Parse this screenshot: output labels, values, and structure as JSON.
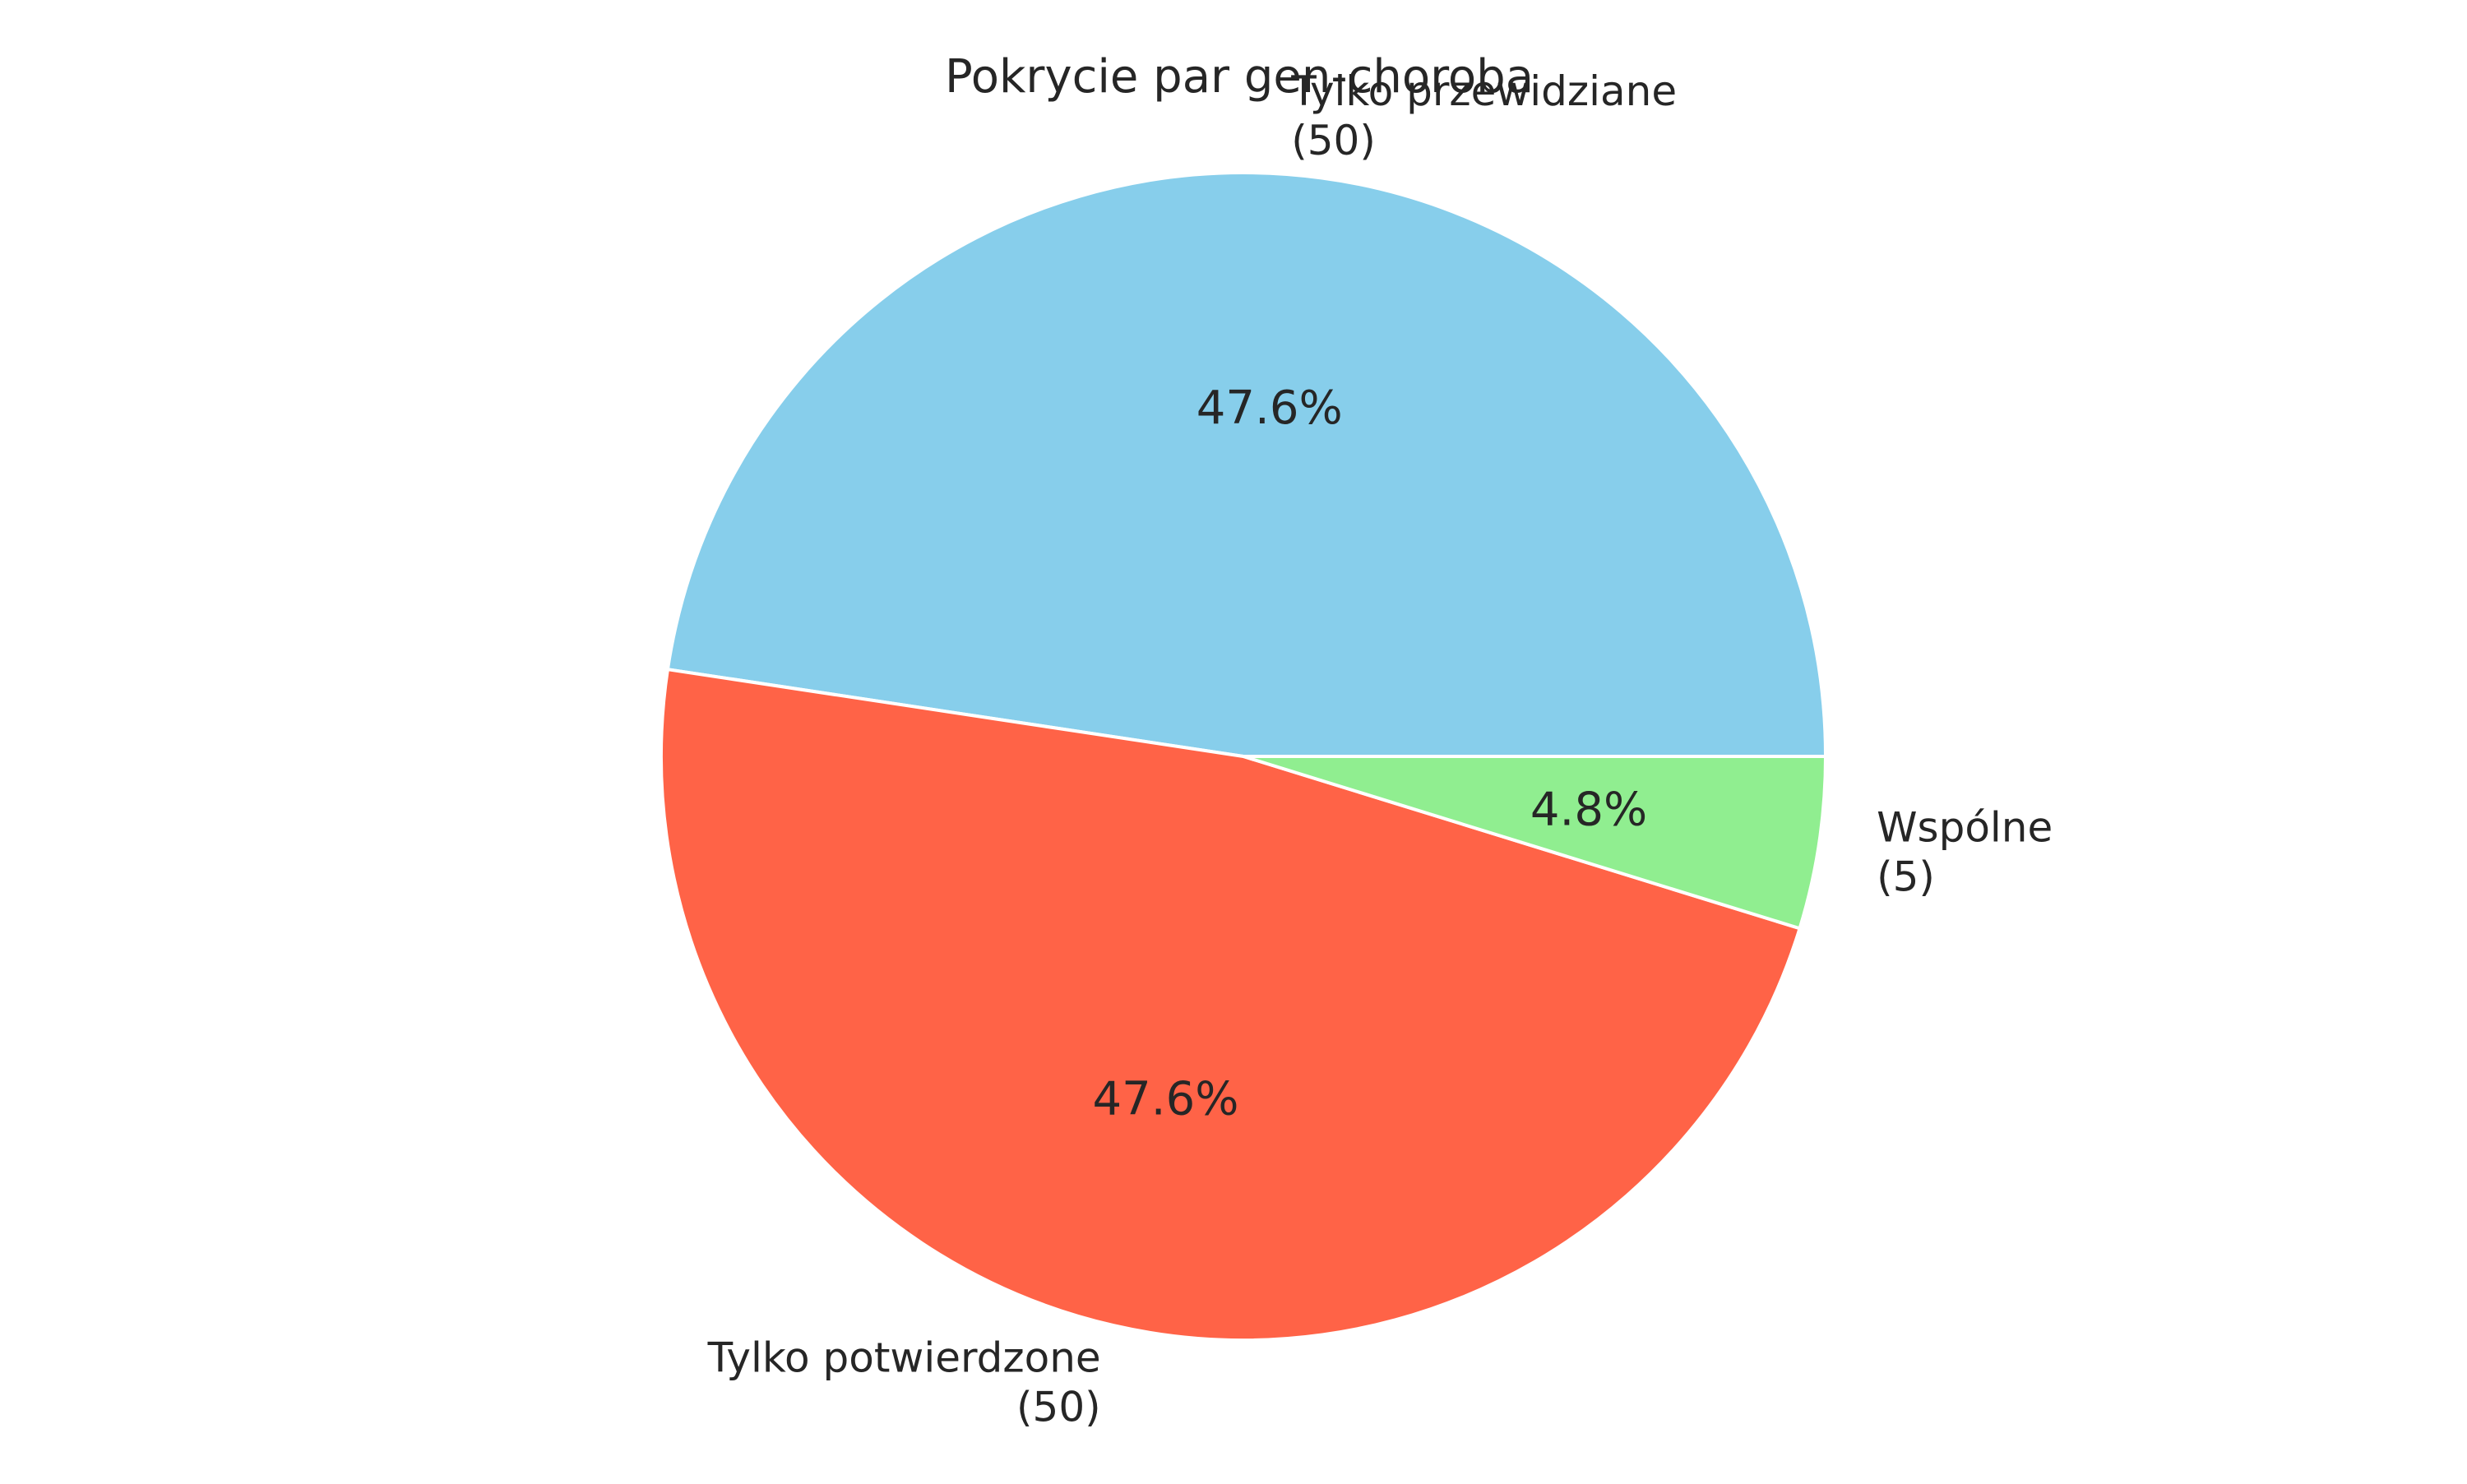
{
  "chart_data": {
    "type": "pie",
    "title": "Pokrycie par gen-choroba",
    "slices": [
      {
        "label": "Tylko przewidziane",
        "count_text": "(50)",
        "value": 50,
        "percent_text": "47.6%",
        "color": "#87CEEB"
      },
      {
        "label": "Tylko potwierdzone",
        "count_text": "(50)",
        "value": 50,
        "percent_text": "47.6%",
        "color": "#FF6347"
      },
      {
        "label": "Wspólne",
        "count_text": "(5)",
        "value": 5,
        "percent_text": "4.8%",
        "color": "#90EE90"
      }
    ],
    "start_angle_deg": 0,
    "direction": "counterclockwise",
    "edge_color": "#ffffff",
    "legend": "none"
  }
}
